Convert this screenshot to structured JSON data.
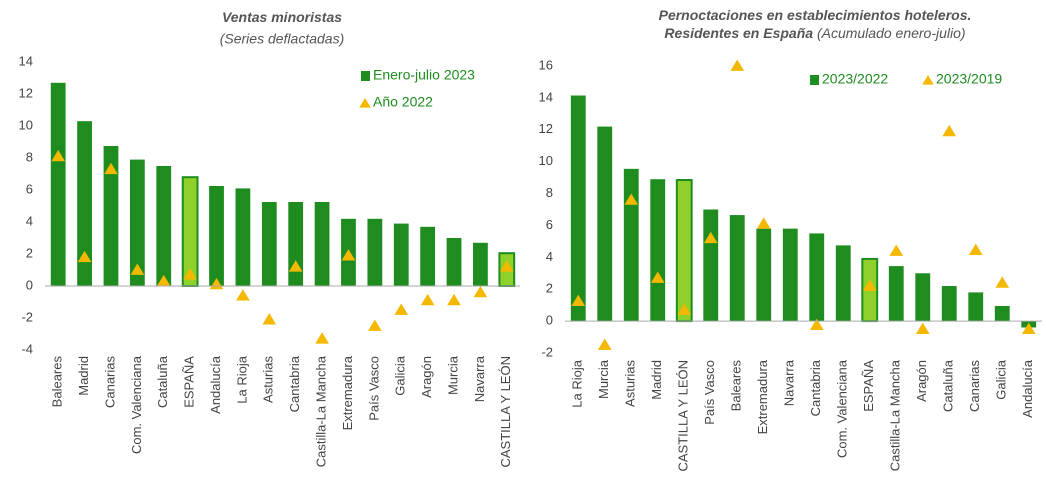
{
  "chart_data": [
    {
      "type": "bar",
      "title": [
        "Ventas minoristas"
      ],
      "subtitle": "(Series deflactadas)",
      "categories": [
        "Baleares",
        "Madrid",
        "Canarias",
        "Com. Valenciana",
        "Cataluña",
        "ESPAÑA",
        "Andalucía",
        "La Rioja",
        "Asturias",
        "Cantabria",
        "Castilla-La Mancha",
        "Extremadura",
        "País Vasco",
        "Galicia",
        "Aragón",
        "Murcia",
        "Navarra",
        "CASTILLA Y LEÓN"
      ],
      "series": [
        {
          "name": "Enero-julio 2023",
          "color": "#1e8c1e",
          "marker": "bar",
          "values": [
            12.7,
            10.3,
            8.75,
            7.9,
            7.5,
            6.8,
            6.25,
            6.1,
            5.25,
            5.25,
            5.25,
            4.2,
            4.2,
            3.9,
            3.7,
            3.0,
            2.7,
            2.05
          ]
        },
        {
          "name": "Año 2022",
          "color": "#f5b800",
          "marker": "triangle",
          "values": [
            8.1,
            1.8,
            7.3,
            1.0,
            0.3,
            0.7,
            0.1,
            -0.6,
            -2.1,
            1.2,
            -3.3,
            1.9,
            -2.5,
            -1.5,
            -0.9,
            -0.9,
            -0.4,
            1.2
          ]
        }
      ],
      "highlight": [
        5,
        17
      ],
      "highlight_color": "#8fd12a",
      "ylim": [
        -4,
        14
      ],
      "yticks": [
        -4,
        -2,
        0,
        2,
        4,
        6,
        8,
        10,
        12,
        14
      ],
      "grid": false,
      "legend": "upper right",
      "legend_layout": "vertical"
    },
    {
      "type": "bar",
      "title": [
        "Pernoctaciones en establecimientos hoteleros.",
        "Residentes en España"
      ],
      "subtitle": "(Acumulado enero-julio)",
      "categories": [
        "La Rioja",
        "Murcia",
        "Asturias",
        "Madrid",
        "CASTILLA Y LEÓN",
        "País Vasco",
        "Baleares",
        "Extremadura",
        "Navarra",
        "Cantabria",
        "Com. Valenciana",
        "ESPAÑA",
        "Castilla-La Mancha",
        "Aragón",
        "Cataluña",
        "Canarias",
        "Galicia",
        "Andalucía"
      ],
      "series": [
        {
          "name": "2023/2022",
          "color": "#1e8c1e",
          "marker": "bar",
          "values": [
            14.15,
            12.2,
            9.55,
            8.9,
            8.85,
            7.0,
            6.65,
            5.8,
            5.8,
            5.5,
            4.75,
            3.9,
            3.45,
            3.0,
            2.2,
            1.8,
            0.95,
            -0.4
          ]
        },
        {
          "name": "2023/2019",
          "color": "#f5b800",
          "marker": "triangle",
          "values": [
            1.25,
            -1.5,
            7.6,
            2.7,
            0.7,
            5.2,
            16.0,
            6.1,
            null,
            -0.25,
            null,
            2.2,
            4.4,
            -0.5,
            11.9,
            4.45,
            2.4,
            -0.5
          ]
        }
      ],
      "highlight": [
        4,
        11
      ],
      "highlight_color": "#8fd12a",
      "ylim": [
        -2,
        16
      ],
      "yticks": [
        -2,
        0,
        2,
        4,
        6,
        8,
        10,
        12,
        14,
        16
      ],
      "grid": false,
      "legend": "upper right",
      "legend_layout": "horizontal"
    }
  ]
}
